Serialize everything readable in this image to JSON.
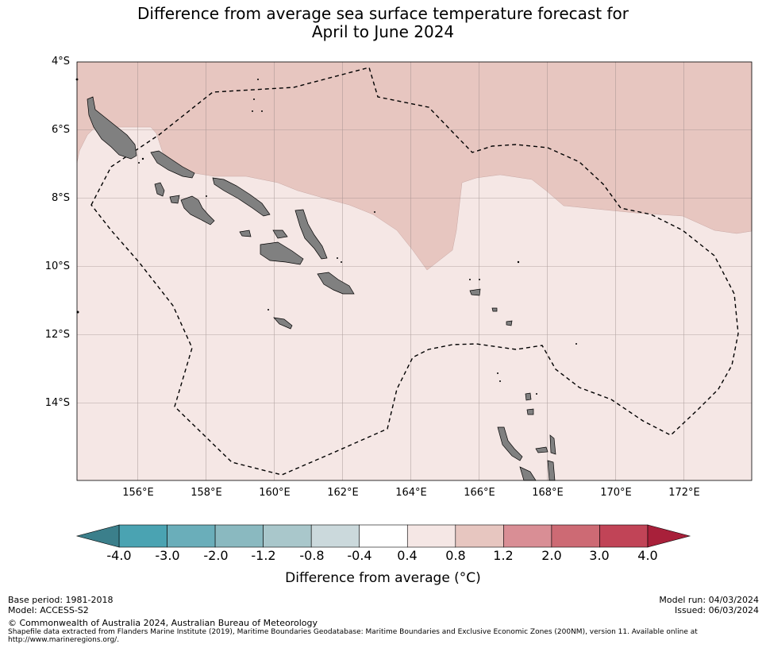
{
  "title_line1": "Difference from average sea surface temperature forecast for",
  "title_line2": "April to June 2024",
  "lat_labels": [
    "4°S",
    "6°S",
    "8°S",
    "10°S",
    "12°S",
    "14°S"
  ],
  "lon_labels": [
    "156°E",
    "158°E",
    "160°E",
    "162°E",
    "164°E",
    "166°E",
    "168°E",
    "170°E",
    "172°E"
  ],
  "map_extent": {
    "lon_min": 154.2,
    "lon_max": 174.0,
    "lat_min": -16.2,
    "lat_max": -4.0
  },
  "colorbar": {
    "ticks": [
      "-4.0",
      "-3.0",
      "-2.0",
      "-1.2",
      "-0.8",
      "-0.4",
      "0.4",
      "0.8",
      "1.2",
      "2.0",
      "3.0",
      "4.0"
    ],
    "colors": [
      "#4aa3b2",
      "#6aaeba",
      "#8ab9c0",
      "#a9c7cb",
      "#cbd9dc",
      "#ffffff",
      "#f5e7e5",
      "#e7c6c0",
      "#d98e95",
      "#cd6a74",
      "#c14457"
    ],
    "under_color": "#3b7f8b",
    "over_color": "#a8203a",
    "label": "Difference from average (°C)"
  },
  "map_colors": {
    "warm_high": "#e7c6c0",
    "warm_low": "#f5e7e5",
    "land": "#808080"
  },
  "footer": {
    "base_period": "Base period: 1981-2018",
    "model": "Model: ACCESS-S2",
    "model_run": "Model run: 04/03/2024",
    "issued": "Issued: 06/03/2024",
    "copyright": "© Commonwealth of Australia 2024, Australian Bureau of Meteorology",
    "shapefile": "Shapefile data extracted from Flanders Marine Institute (2019), Maritime Boundaries Geodatabase: Maritime Boundaries and Exclusive Economic Zones (200NM), version 11. Available online at http://www.marineregions.org/."
  }
}
